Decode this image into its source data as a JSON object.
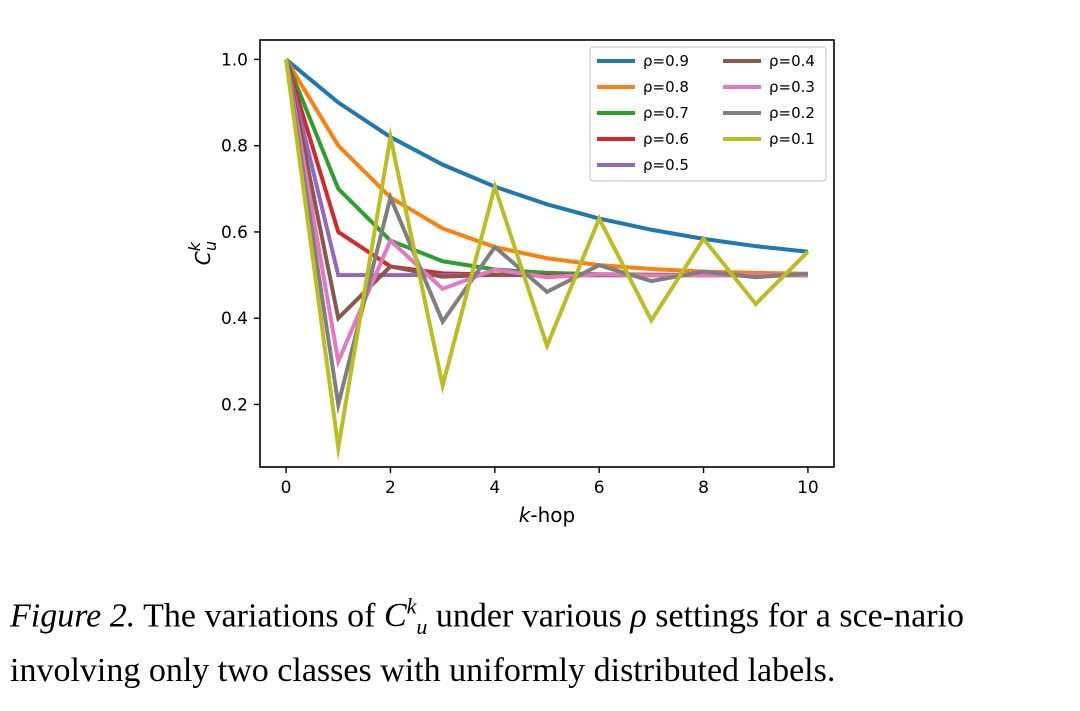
{
  "chart_data": {
    "type": "line",
    "xlabel_italic": "k",
    "xlabel_rest": "-hop",
    "ylabel_base": "C",
    "ylabel_sup": "k",
    "ylabel_sub": "u",
    "xlim": [
      -0.5,
      10.5
    ],
    "ylim": [
      0.055,
      1.045
    ],
    "xticks": [
      0,
      2,
      4,
      6,
      8,
      10
    ],
    "yticks": [
      0.2,
      0.4,
      0.6,
      0.8,
      1.0
    ],
    "ytick_labels": [
      "0.2",
      "0.4",
      "0.6",
      "0.8",
      "1.0"
    ],
    "grid": false,
    "legend_placement": "top-right",
    "x": [
      0,
      1,
      2,
      3,
      4,
      5,
      6,
      7,
      8,
      9,
      10
    ],
    "series": [
      {
        "name": "ρ=0.9",
        "color": "#1f77b4",
        "values": [
          1.0,
          0.9,
          0.82,
          0.756,
          0.705,
          0.664,
          0.631,
          0.605,
          0.584,
          0.567,
          0.554
        ]
      },
      {
        "name": "ρ=0.8",
        "color": "#ff7f0e",
        "values": [
          1.0,
          0.8,
          0.68,
          0.608,
          0.565,
          0.539,
          0.523,
          0.514,
          0.508,
          0.505,
          0.503
        ]
      },
      {
        "name": "ρ=0.7",
        "color": "#2ca02c",
        "values": [
          1.0,
          0.7,
          0.58,
          0.532,
          0.513,
          0.505,
          0.502,
          0.501,
          0.5,
          0.5,
          0.5
        ]
      },
      {
        "name": "ρ=0.6",
        "color": "#d62728",
        "values": [
          1.0,
          0.6,
          0.52,
          0.504,
          0.501,
          0.5,
          0.5,
          0.5,
          0.5,
          0.5,
          0.5
        ]
      },
      {
        "name": "ρ=0.5",
        "color": "#9467bd",
        "values": [
          1.0,
          0.5,
          0.5,
          0.5,
          0.5,
          0.5,
          0.5,
          0.5,
          0.5,
          0.5,
          0.5
        ]
      },
      {
        "name": "ρ=0.4",
        "color": "#8c564b",
        "values": [
          1.0,
          0.4,
          0.52,
          0.496,
          0.501,
          0.5,
          0.5,
          0.5,
          0.5,
          0.5,
          0.5
        ]
      },
      {
        "name": "ρ=0.3",
        "color": "#e377c2",
        "values": [
          1.0,
          0.3,
          0.58,
          0.468,
          0.513,
          0.495,
          0.502,
          0.499,
          0.5,
          0.5,
          0.5
        ]
      },
      {
        "name": "ρ=0.2",
        "color": "#7f7f7f",
        "values": [
          1.0,
          0.2,
          0.68,
          0.392,
          0.565,
          0.461,
          0.523,
          0.486,
          0.508,
          0.495,
          0.503
        ]
      },
      {
        "name": "ρ=0.1",
        "color": "#bcbd22",
        "values": [
          1.0,
          0.1,
          0.82,
          0.244,
          0.705,
          0.336,
          0.631,
          0.395,
          0.584,
          0.433,
          0.554
        ]
      }
    ]
  },
  "caption": {
    "fig_label": "Figure 2.",
    "text_1": " The variations of ",
    "math_base": "C",
    "math_sup": "k",
    "math_sub": "u",
    "text_2": " under various ",
    "math_rho": "ρ",
    "text_3": " settings for a sce-nario involving only two classes with uniformly distributed labels."
  }
}
